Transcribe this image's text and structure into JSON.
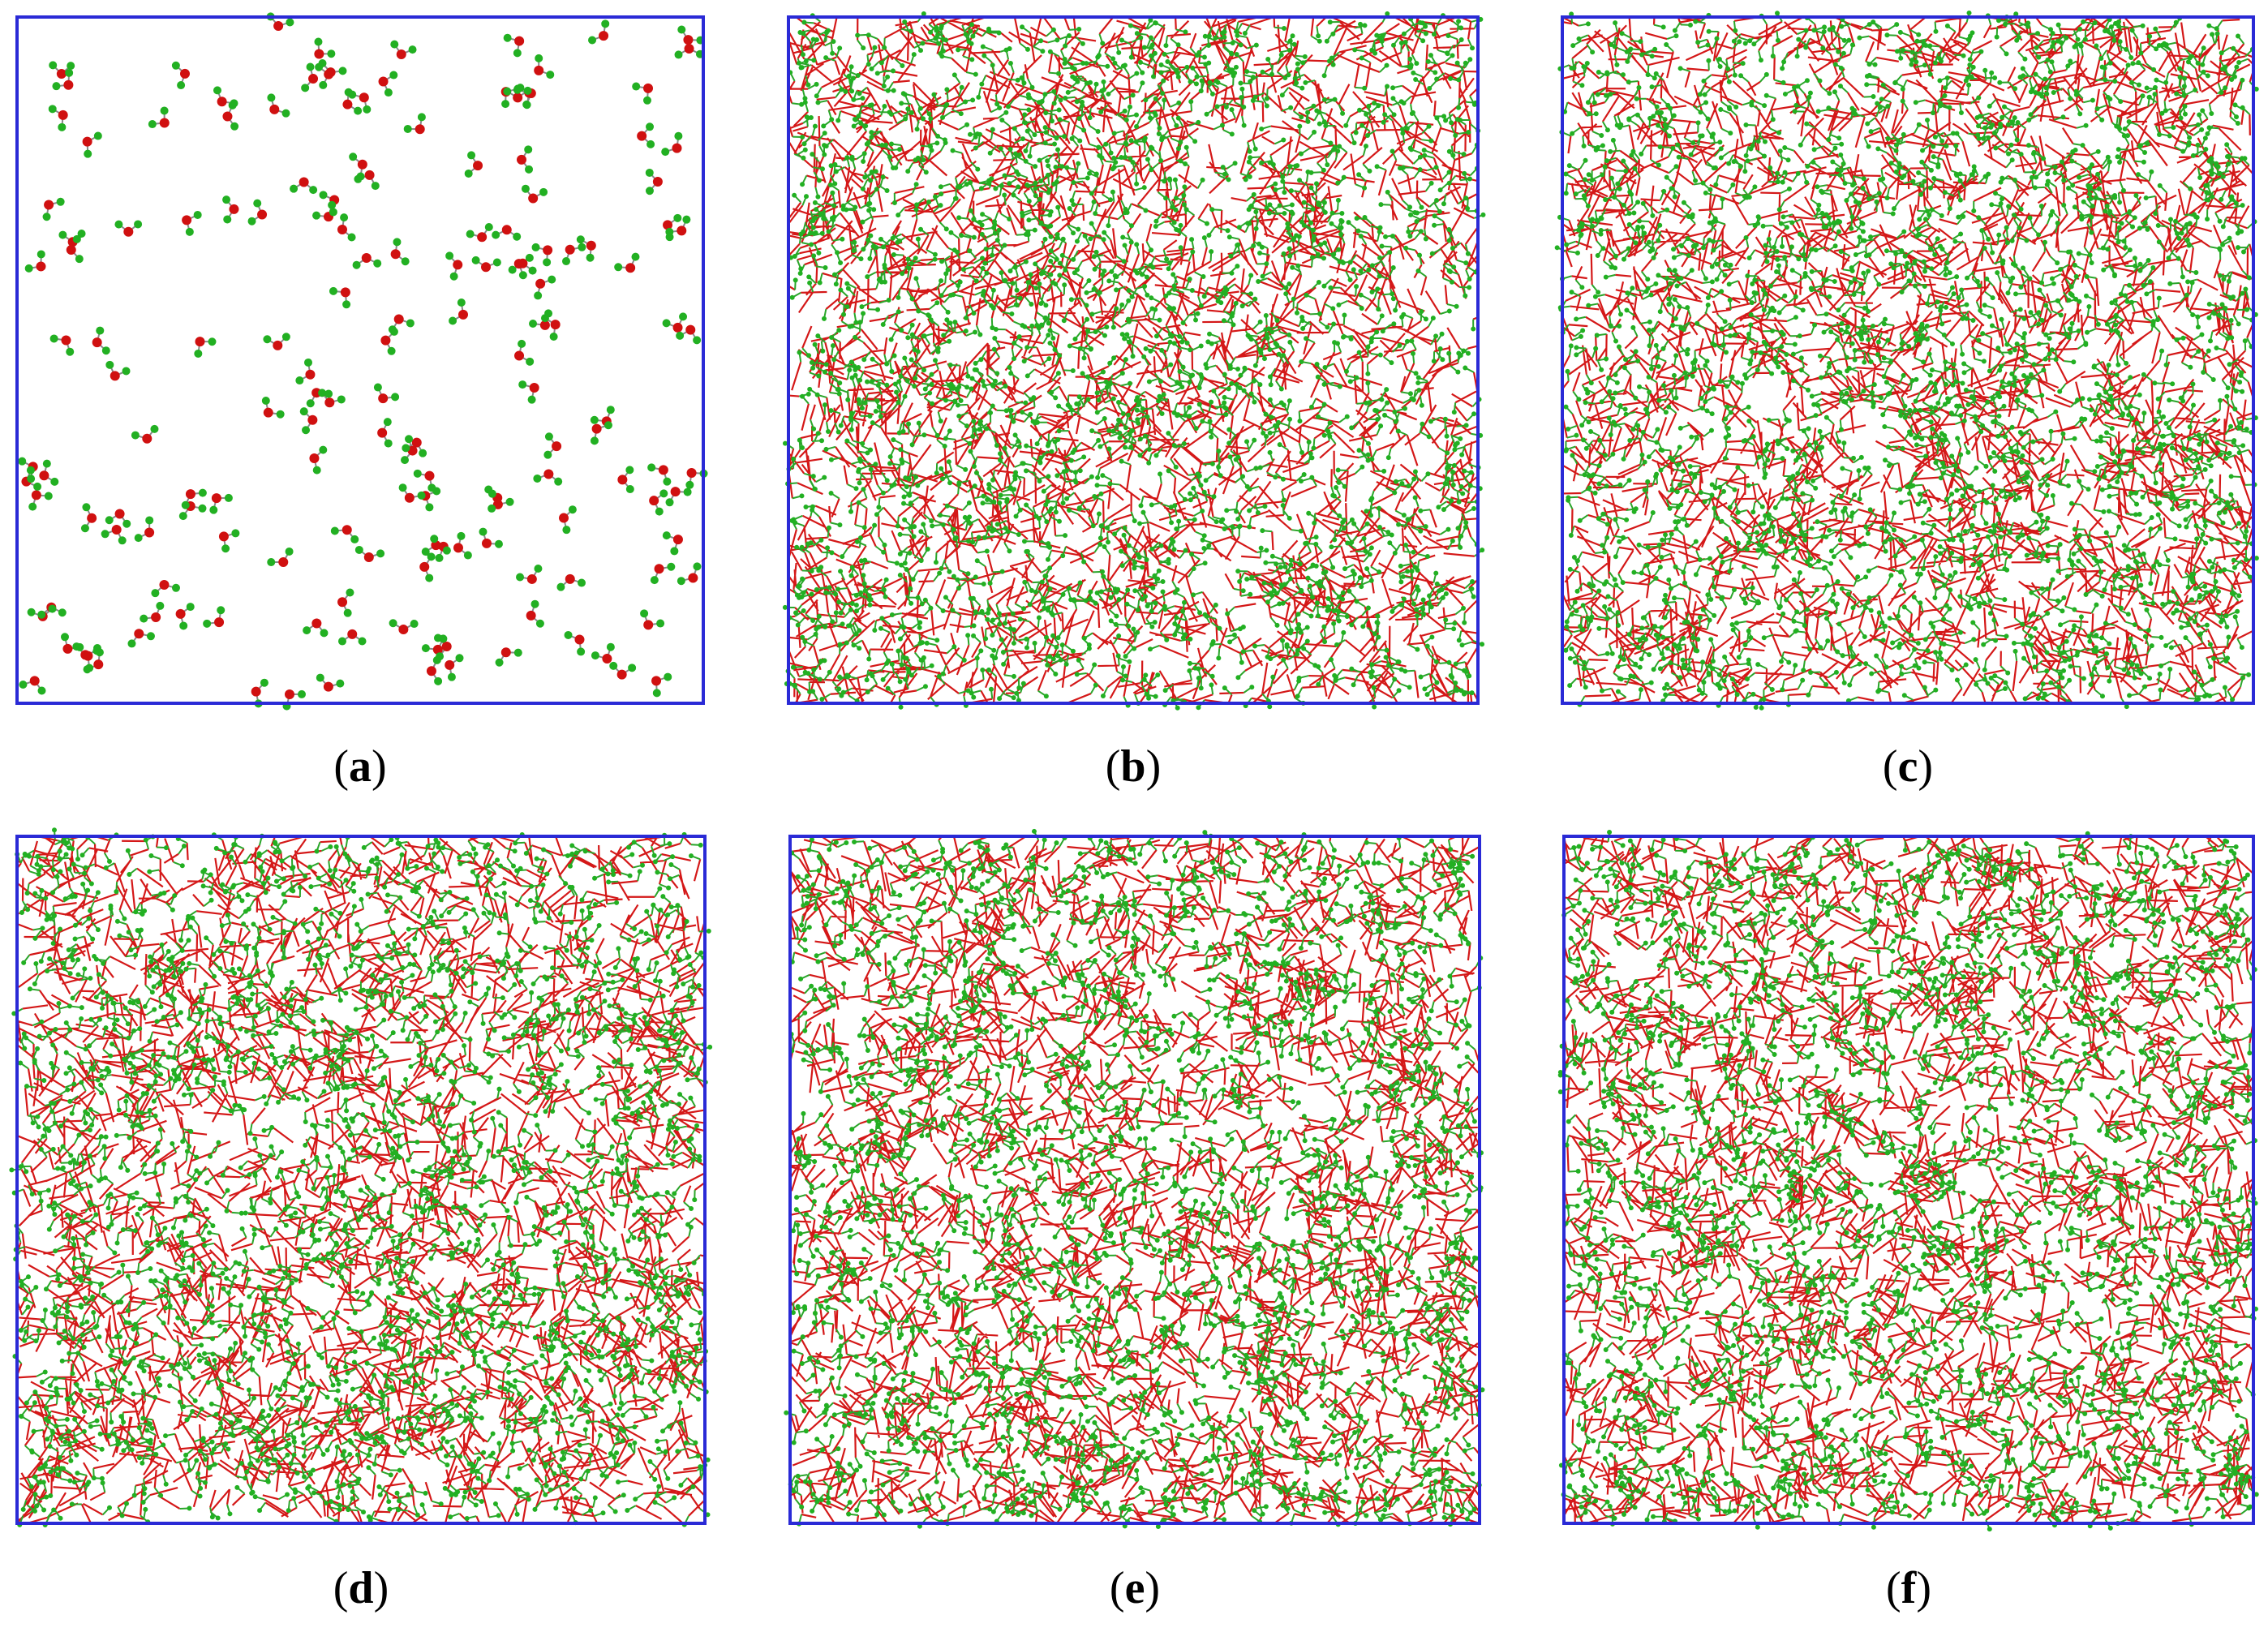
{
  "panels": [
    {
      "open": "(",
      "letter": "a",
      "close": ")"
    },
    {
      "open": "(",
      "letter": "b",
      "close": ")"
    },
    {
      "open": "(",
      "letter": "c",
      "close": ")"
    },
    {
      "open": "(",
      "letter": "d",
      "close": ")"
    },
    {
      "open": "(",
      "letter": "e",
      "close": ")"
    },
    {
      "open": "(",
      "letter": "f",
      "close": ")"
    }
  ]
}
